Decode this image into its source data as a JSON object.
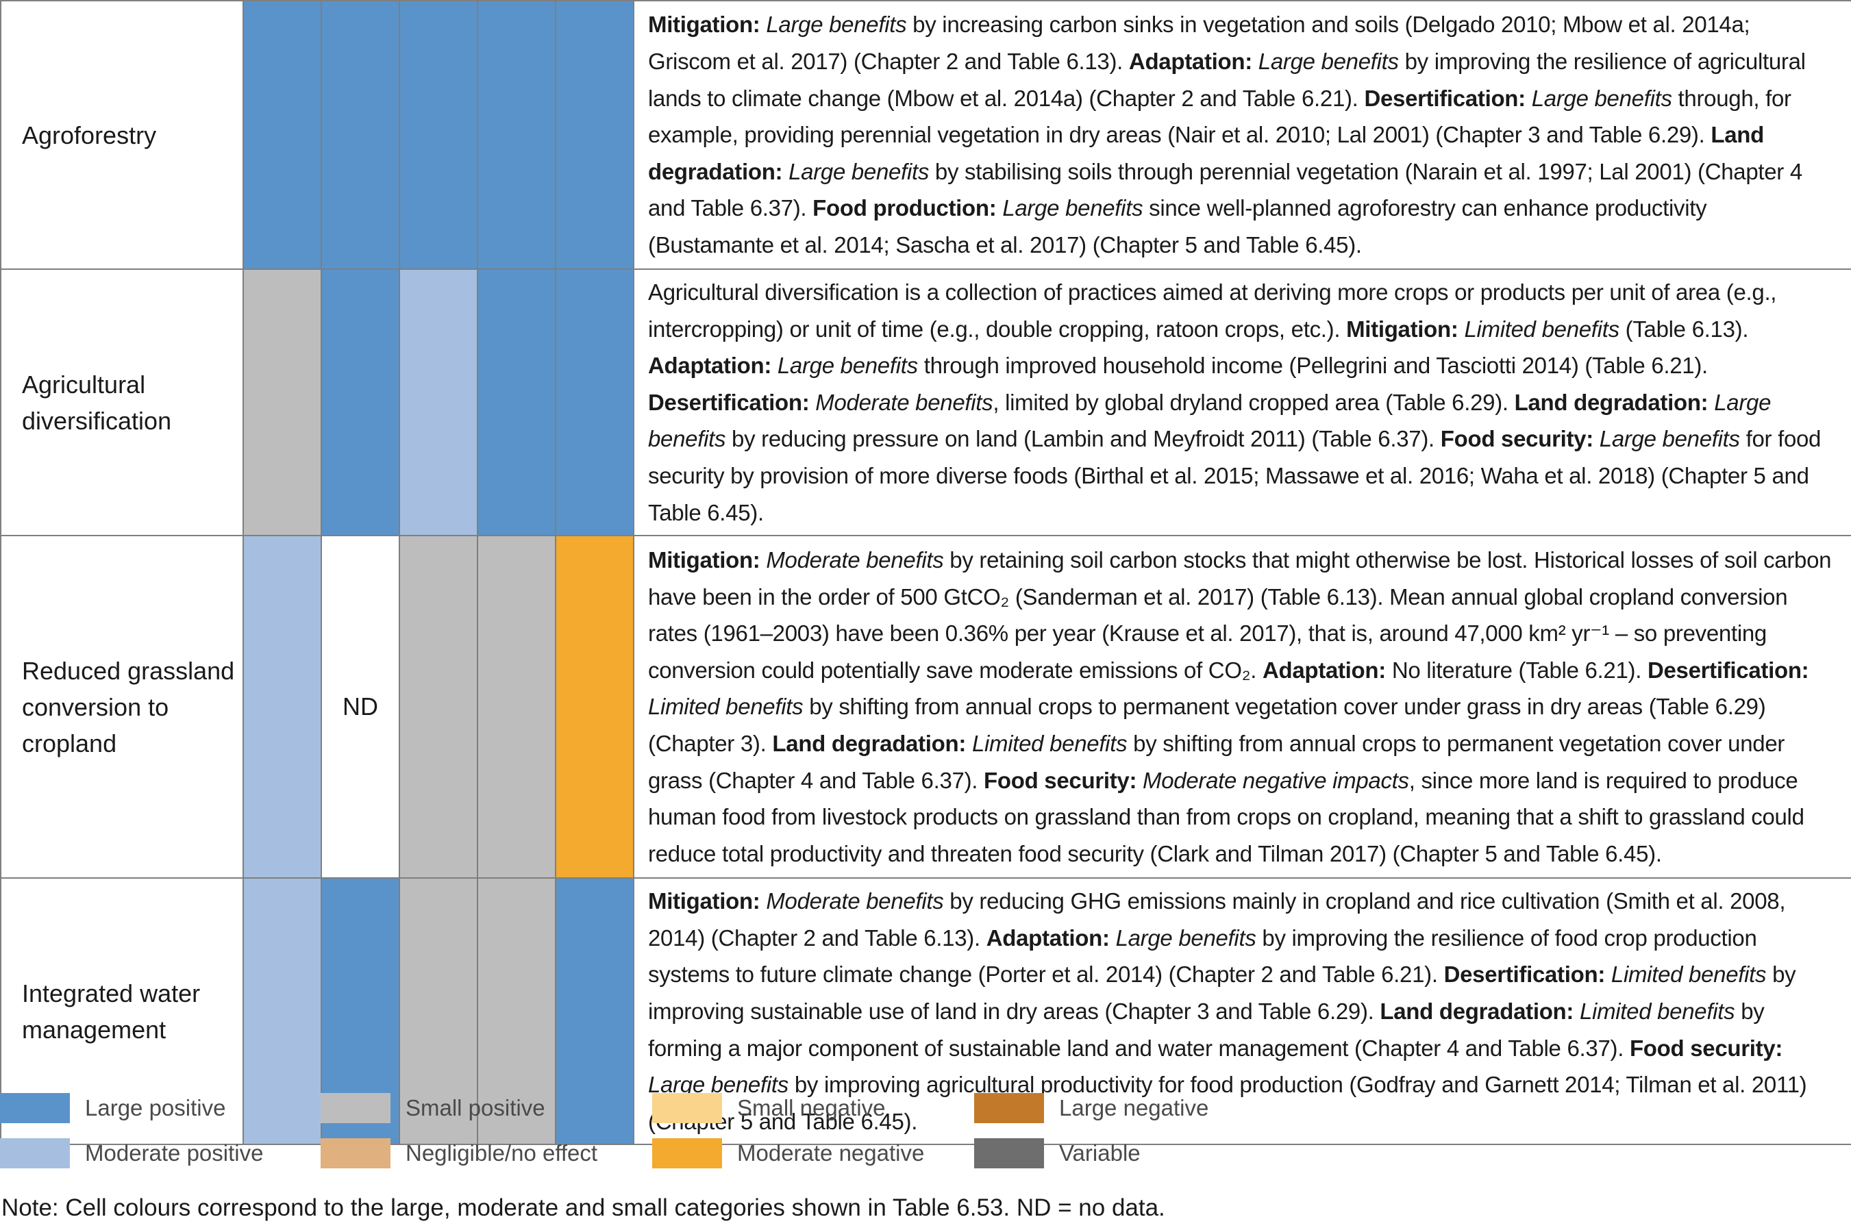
{
  "colors": {
    "large_positive": "#5a93c9",
    "moderate_positive": "#a6bfe0",
    "small_positive": "#bdbdbd",
    "negligible": "#e0b07e",
    "small_negative": "#fad48a",
    "moderate_negative": "#f4aa2e",
    "large_negative": "#c27a2a",
    "variable": "#6e6e6e",
    "no_data": "#ffffff"
  },
  "rows": [
    {
      "name_lines": [
        "Agroforestry"
      ],
      "cells": [
        {
          "category": "large_positive",
          "label": ""
        },
        {
          "category": "large_positive",
          "label": ""
        },
        {
          "category": "large_positive",
          "label": ""
        },
        {
          "category": "large_positive",
          "label": ""
        },
        {
          "category": "large_positive",
          "label": ""
        }
      ],
      "description": [
        {
          "b": "Mitigation: "
        },
        {
          "i": "Large benefits"
        },
        {
          "t": " by increasing carbon sinks in vegetation and soils (Delgado 2010; Mbow et al. 2014a; Griscom et al. 2017) (Chapter 2 and Table 6.13). "
        },
        {
          "b": "Adaptation: "
        },
        {
          "i": "Large benefits"
        },
        {
          "t": " by improving the resilience of agricultural lands to climate change (Mbow et al. 2014a) (Chapter 2 and Table 6.21). "
        },
        {
          "b": "Desertification: "
        },
        {
          "i": "Large benefits"
        },
        {
          "t": " through, for example, providing perennial vegetation in dry areas (Nair et al. 2010; Lal 2001) (Chapter 3 and Table 6.29). "
        },
        {
          "b": "Land degradation: "
        },
        {
          "i": "Large benefits"
        },
        {
          "t": " by stabilising soils through perennial vegetation (Narain et al. 1997; Lal 2001) (Chapter 4 and Table 6.37). "
        },
        {
          "b": "Food production: "
        },
        {
          "i": "Large benefits"
        },
        {
          "t": " since well-planned agroforestry can enhance productivity (Bustamante et al. 2014; Sascha et al. 2017) (Chapter 5 and Table 6.45)."
        }
      ]
    },
    {
      "name_lines": [
        "Agricultural",
        "diversification"
      ],
      "cells": [
        {
          "category": "small_positive",
          "label": ""
        },
        {
          "category": "large_positive",
          "label": ""
        },
        {
          "category": "moderate_positive",
          "label": ""
        },
        {
          "category": "large_positive",
          "label": ""
        },
        {
          "category": "large_positive",
          "label": ""
        }
      ],
      "description": [
        {
          "t": "Agricultural diversification is a collection of practices aimed at deriving more crops or products per unit of area (e.g., intercropping) or unit of time (e.g., double cropping, ratoon crops, etc.). "
        },
        {
          "b": "Mitigation: "
        },
        {
          "i": "Limited benefits"
        },
        {
          "t": " (Table 6.13). "
        },
        {
          "b": "Adaptation: "
        },
        {
          "i": "Large benefits"
        },
        {
          "t": " through improved household income (Pellegrini and Tasciotti 2014) (Table 6.21). "
        },
        {
          "b": "Desertification: "
        },
        {
          "i": "Moderate benefits"
        },
        {
          "t": ", limited by global dryland cropped area (Table 6.29). "
        },
        {
          "b": "Land degradation: "
        },
        {
          "i": "Large benefits"
        },
        {
          "t": " by reducing pressure on land (Lambin and Meyfroidt 2011) (Table 6.37). "
        },
        {
          "b": "Food security: "
        },
        {
          "i": "Large benefits"
        },
        {
          "t": " for food security by provision of more diverse foods (Birthal et al. 2015; Massawe et al. 2016; Waha et al. 2018) (Chapter 5 and Table 6.45)."
        }
      ]
    },
    {
      "name_lines": [
        "Reduced grassland",
        "conversion to",
        "cropland"
      ],
      "cells": [
        {
          "category": "moderate_positive",
          "label": ""
        },
        {
          "category": "no_data",
          "label": "ND"
        },
        {
          "category": "small_positive",
          "label": ""
        },
        {
          "category": "small_positive",
          "label": ""
        },
        {
          "category": "moderate_negative",
          "label": ""
        }
      ],
      "description": [
        {
          "b": "Mitigation: "
        },
        {
          "i": "Moderate benefits"
        },
        {
          "t": " by retaining soil carbon stocks that might otherwise be lost. Historical losses of soil carbon have been in the order of 500 GtCO₂ (Sanderman et al. 2017) (Table 6.13). Mean annual global cropland conversion rates (1961–2003) have been 0.36% per year (Krause et al. 2017), that is, around 47,000 km² yr⁻¹ – so preventing conversion could potentially save moderate emissions of CO₂. "
        },
        {
          "b": "Adaptation: "
        },
        {
          "t": "No literature (Table 6.21). "
        },
        {
          "b": "Desertification: "
        },
        {
          "i": "Limited benefits"
        },
        {
          "t": " by shifting from annual crops to permanent vegetation cover under grass in dry areas (Table 6.29) (Chapter 3). "
        },
        {
          "b": "Land degradation: "
        },
        {
          "i": "Limited benefits"
        },
        {
          "t": " by shifting from annual crops to permanent vegetation cover under grass (Chapter 4 and Table 6.37). "
        },
        {
          "b": "Food security: "
        },
        {
          "i": "Moderate negative impacts"
        },
        {
          "t": ", since more land is required to produce human food from livestock products on grassland than from crops on cropland, meaning that a shift to grassland could reduce total productivity and threaten food security (Clark and Tilman 2017) (Chapter 5 and Table 6.45)."
        }
      ]
    },
    {
      "name_lines": [
        "Integrated water",
        "management"
      ],
      "cells": [
        {
          "category": "moderate_positive",
          "label": ""
        },
        {
          "category": "large_positive",
          "label": ""
        },
        {
          "category": "small_positive",
          "label": ""
        },
        {
          "category": "small_positive",
          "label": ""
        },
        {
          "category": "large_positive",
          "label": ""
        }
      ],
      "description": [
        {
          "b": "Mitigation: "
        },
        {
          "i": "Moderate benefits"
        },
        {
          "t": " by reducing GHG emissions mainly in cropland and rice cultivation (Smith et al. 2008, 2014) (Chapter 2 and Table 6.13). "
        },
        {
          "b": "Adaptation: "
        },
        {
          "i": "Large benefits"
        },
        {
          "t": " by improving the resilience of food crop production systems to future climate change (Porter et al. 2014) (Chapter 2 and Table 6.21). "
        },
        {
          "b": "Desertification: "
        },
        {
          "i": "Limited benefits"
        },
        {
          "t": " by improving sustainable use of land in dry areas (Chapter 3 and Table 6.29). "
        },
        {
          "b": "Land degradation: "
        },
        {
          "i": "Limited benefits"
        },
        {
          "t": " by forming a major component of sustainable land and water management (Chapter 4 and Table 6.37). "
        },
        {
          "b": "Food security: "
        },
        {
          "i": "Large benefits"
        },
        {
          "t": " by improving agricultural productivity for food production (Godfray and Garnett 2014; Tilman et al. 2011) (Chapter 5 and Table 6.45)."
        }
      ]
    }
  ],
  "legend": [
    {
      "label": "Large positive",
      "category": "large_positive"
    },
    {
      "label": "Moderate positive",
      "category": "moderate_positive"
    },
    {
      "label": "Small positive",
      "category": "small_positive"
    },
    {
      "label": "Negligible/no effect",
      "category": "negligible"
    },
    {
      "label": "Small negative",
      "category": "small_negative"
    },
    {
      "label": "Moderate negative",
      "category": "moderate_negative"
    },
    {
      "label": "Large negative",
      "category": "large_negative"
    },
    {
      "label": "Variable",
      "category": "variable"
    }
  ],
  "note": "Note: Cell colours correspond to the large, moderate and small categories shown in Table 6.53. ND = no data."
}
